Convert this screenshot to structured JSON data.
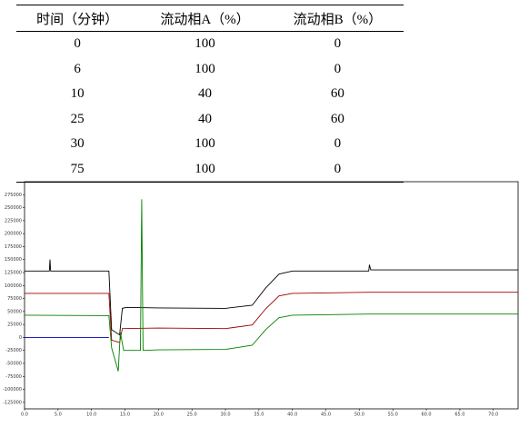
{
  "table": {
    "header": [
      "时间（分钟）",
      "流动相A（%）",
      "流动相B（%）"
    ],
    "rows": [
      [
        0,
        100,
        0
      ],
      [
        6,
        100,
        0
      ],
      [
        10,
        40,
        60
      ],
      [
        25,
        40,
        60
      ],
      [
        30,
        100,
        0
      ],
      [
        75,
        100,
        0
      ]
    ]
  },
  "chart_data": {
    "type": "line",
    "xlim": [
      0,
      73.7
    ],
    "ylim": [
      -137500,
      300000
    ],
    "xticks": [
      {
        "value": 0,
        "label": "0.0"
      },
      {
        "value": 5,
        "label": "5.0"
      },
      {
        "value": 10,
        "label": "10.0"
      },
      {
        "value": 15,
        "label": "15.0"
      },
      {
        "value": 20,
        "label": "20.0"
      },
      {
        "value": 25,
        "label": "25.0"
      },
      {
        "value": 30,
        "label": "30.0"
      },
      {
        "value": 35,
        "label": "35.0"
      },
      {
        "value": 40,
        "label": "40.0"
      },
      {
        "value": 45,
        "label": "45.0"
      },
      {
        "value": 50,
        "label": "50.0"
      },
      {
        "value": 55,
        "label": "55.0"
      },
      {
        "value": 60,
        "label": "60.0"
      },
      {
        "value": 65,
        "label": "65.0"
      },
      {
        "value": 70,
        "label": "70.0"
      }
    ],
    "yticks": [
      275000,
      250000,
      225000,
      200000,
      175000,
      150000,
      125000,
      100000,
      75000,
      50000,
      25000,
      0,
      -25000,
      -50000,
      -75000,
      -100000,
      -125000
    ],
    "series": [
      {
        "color": "#000000",
        "x": [
          0,
          3.7,
          3.8,
          3.9,
          12.6,
          13.0,
          14.2,
          14.6,
          15.2,
          20,
          30,
          34,
          36,
          38,
          40,
          51.4,
          51.5,
          51.7,
          73.7
        ],
        "values": [
          128000,
          128000,
          150000,
          128000,
          128000,
          15000,
          5000,
          56000,
          58000,
          57000,
          56000,
          62000,
          95000,
          122000,
          128000,
          128000,
          140000,
          130000,
          130000
        ]
      },
      {
        "color": "#a00000",
        "x": [
          0,
          12.6,
          13.0,
          14.2,
          14.6,
          20,
          30,
          34,
          36,
          38,
          40,
          51.5,
          73.7
        ],
        "values": [
          85000,
          85000,
          -5000,
          -10000,
          17000,
          18000,
          17000,
          24000,
          55000,
          80000,
          85000,
          87000,
          87000
        ]
      },
      {
        "color": "#008000",
        "x": [
          0,
          12.6,
          13.0,
          14.0,
          14.3,
          14.8,
          17.3,
          17.5,
          17.7,
          20,
          30,
          34,
          36,
          38,
          40,
          51.5,
          73.7
        ],
        "values": [
          43000,
          42000,
          -20000,
          -65000,
          10000,
          -25000,
          -25000,
          266000,
          -25000,
          -24000,
          -23000,
          -15000,
          15000,
          38000,
          43000,
          45000,
          45000
        ]
      },
      {
        "color": "#0000c0",
        "x": [
          0,
          12.6
        ],
        "values": [
          0,
          0
        ]
      }
    ]
  }
}
